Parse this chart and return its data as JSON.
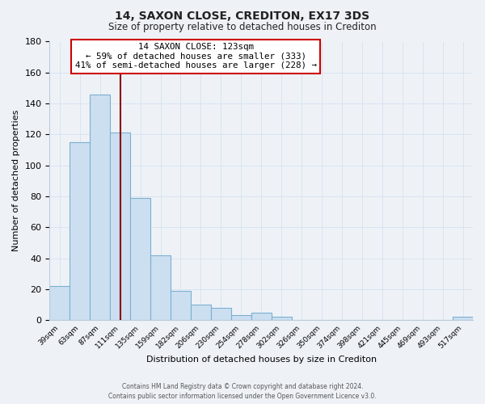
{
  "title": "14, SAXON CLOSE, CREDITON, EX17 3DS",
  "subtitle": "Size of property relative to detached houses in Crediton",
  "xlabel": "Distribution of detached houses by size in Crediton",
  "ylabel": "Number of detached properties",
  "bar_labels": [
    "39sqm",
    "63sqm",
    "87sqm",
    "111sqm",
    "135sqm",
    "159sqm",
    "182sqm",
    "206sqm",
    "230sqm",
    "254sqm",
    "278sqm",
    "302sqm",
    "326sqm",
    "350sqm",
    "374sqm",
    "398sqm",
    "421sqm",
    "445sqm",
    "469sqm",
    "493sqm",
    "517sqm"
  ],
  "bar_values": [
    22,
    115,
    146,
    121,
    79,
    42,
    19,
    10,
    8,
    3,
    5,
    2,
    0,
    0,
    0,
    0,
    0,
    0,
    0,
    0,
    2
  ],
  "bar_color": "#ccdff0",
  "bar_edge_color": "#7ab0d0",
  "ylim": [
    0,
    180
  ],
  "yticks": [
    0,
    20,
    40,
    60,
    80,
    100,
    120,
    140,
    160,
    180
  ],
  "vline_x": 123,
  "vline_color": "#8b0000",
  "annotation_line1": "14 SAXON CLOSE: 123sqm",
  "annotation_line2": "← 59% of detached houses are smaller (333)",
  "annotation_line3": "41% of semi-detached houses are larger (228) →",
  "annotation_box_facecolor": "#ffffff",
  "annotation_box_edgecolor": "#cc0000",
  "footer_line1": "Contains HM Land Registry data © Crown copyright and database right 2024.",
  "footer_line2": "Contains public sector information licensed under the Open Government Licence v3.0.",
  "background_color": "#eef2f7",
  "grid_color": "#d8e4f0",
  "title_fontsize": 10,
  "subtitle_fontsize": 8.5,
  "bin_edges": [
    39,
    63,
    87,
    111,
    135,
    159,
    182,
    206,
    230,
    254,
    278,
    302,
    326,
    350,
    374,
    398,
    421,
    445,
    469,
    493,
    517,
    541
  ]
}
